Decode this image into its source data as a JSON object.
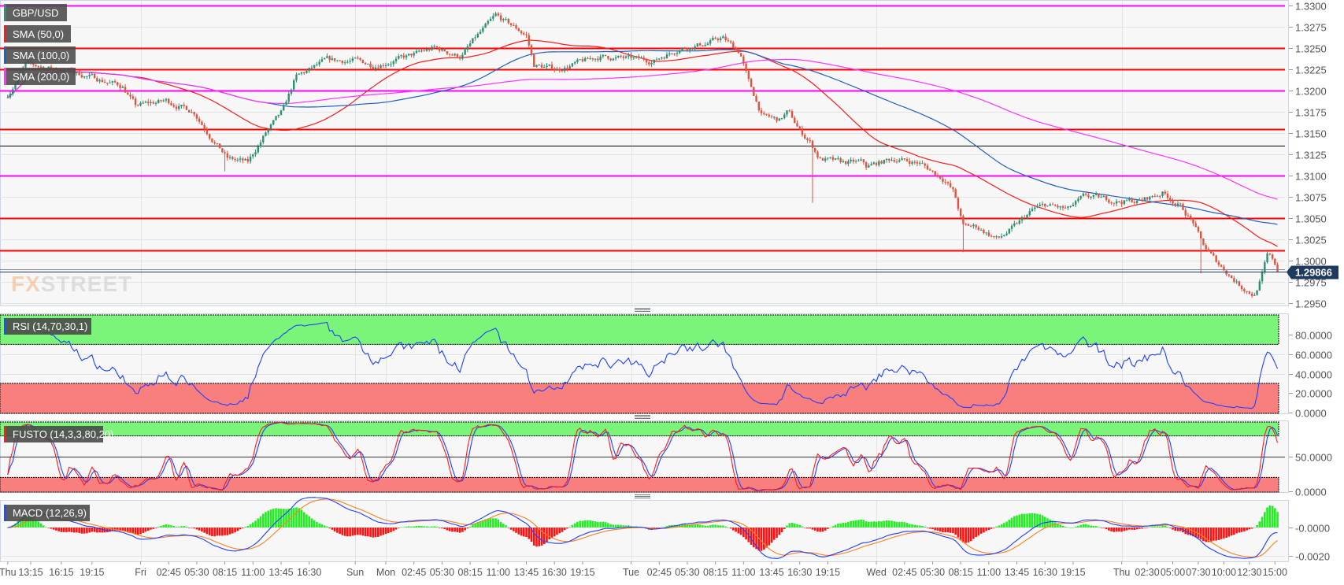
{
  "symbol_label": "GBP/USD",
  "overlays": [
    {
      "label": "SMA (50,0)",
      "color": "#ff1a1a",
      "period": 50
    },
    {
      "label": "SMA (100,0)",
      "color": "#1f5fbf",
      "period": 100
    },
    {
      "label": "SMA (200,0)",
      "color": "#ff33ff",
      "period": 200
    }
  ],
  "watermark": "FXSTREET",
  "current_price": "1.29866",
  "colors": {
    "bull": "#2f8f73",
    "bear": "#e0533f",
    "symbol_marker": "#2f8f73",
    "price_tag": "#1e3a5f"
  },
  "price_axis": {
    "ticks": [
      "1.3300",
      "1.3275",
      "1.3250",
      "1.3225",
      "1.3200",
      "1.3175",
      "1.3150",
      "1.3125",
      "1.3100",
      "1.3075",
      "1.3050",
      "1.3025",
      "1.3000",
      "1.2975",
      "1.2950"
    ]
  },
  "levels": [
    {
      "price": 1.33,
      "color": "#ff00ff"
    },
    {
      "price": 1.325,
      "color": "#ff0000"
    },
    {
      "price": 1.3225,
      "color": "#ff0000"
    },
    {
      "price": 1.32,
      "color": "#ff00ff"
    },
    {
      "price": 1.3155,
      "color": "#ff0000"
    },
    {
      "price": 1.3135,
      "color": "#000000"
    },
    {
      "price": 1.31,
      "color": "#ff00ff"
    },
    {
      "price": 1.305,
      "color": "#ff0000"
    },
    {
      "price": 1.3012,
      "color": "#ff0000"
    },
    {
      "price": 1.299,
      "color": "#888888"
    }
  ],
  "indicators": {
    "rsi": {
      "label": "RSI (14,70,30,1)",
      "ticks": [
        "80.0000",
        "60.0000",
        "40.0000",
        "20.0000",
        "0.0000"
      ],
      "overbought": 70,
      "oversold": 30
    },
    "fusto": {
      "label": "FUSTO (14,3,3,80,20)",
      "ticks": [
        "50.0000",
        "0.0000"
      ],
      "overbought": 80,
      "oversold": 20
    },
    "macd": {
      "label": "MACD (12,26,9)",
      "ticks": [
        "-0.0000",
        "-0.0020"
      ]
    }
  },
  "time_axis": [
    {
      "text": "Thu",
      "t": "Thu 11:00"
    },
    {
      "text": "13:15",
      "t": "Thu 13:15"
    },
    {
      "text": "16:15",
      "t": "Thu 16:15"
    },
    {
      "text": "19:15",
      "t": "Thu 19:15"
    },
    {
      "text": "Fri",
      "t": "Fri 00:00"
    },
    {
      "text": "02:45",
      "t": "Fri 02:45"
    },
    {
      "text": "05:30",
      "t": "Fri 05:30"
    },
    {
      "text": "08:15",
      "t": "Fri 08:15"
    },
    {
      "text": "11:00",
      "t": "Fri 11:00"
    },
    {
      "text": "13:45",
      "t": "Fri 13:45"
    },
    {
      "text": "16:30",
      "t": "Fri 16:30"
    },
    {
      "text": "Sun",
      "t": "Sun 21:00"
    },
    {
      "text": "Mon",
      "t": "Mon 00:00"
    },
    {
      "text": "02:45",
      "t": "Mon 02:45"
    },
    {
      "text": "05:30",
      "t": "Mon 05:30"
    },
    {
      "text": "08:15",
      "t": "Mon 08:15"
    },
    {
      "text": "11:00",
      "t": "Mon 11:00"
    },
    {
      "text": "13:45",
      "t": "Mon 13:45"
    },
    {
      "text": "16:30",
      "t": "Mon 16:30"
    },
    {
      "text": "19:15",
      "t": "Mon 19:15"
    },
    {
      "text": "Tue",
      "t": "Tue 00:00"
    },
    {
      "text": "02:45",
      "t": "Tue 02:45"
    },
    {
      "text": "05:30",
      "t": "Tue 05:30"
    },
    {
      "text": "08:15",
      "t": "Tue 08:15"
    },
    {
      "text": "11:00",
      "t": "Tue 11:00"
    },
    {
      "text": "13:45",
      "t": "Tue 13:45"
    },
    {
      "text": "16:30",
      "t": "Tue 16:30"
    },
    {
      "text": "19:15",
      "t": "Tue 19:15"
    },
    {
      "text": "Wed",
      "t": "Wed 00:00"
    },
    {
      "text": "02:45",
      "t": "Wed 02:45"
    },
    {
      "text": "05:30",
      "t": "Wed 05:30"
    },
    {
      "text": "08:15",
      "t": "Wed 08:15"
    },
    {
      "text": "11:00",
      "t": "Wed 11:00"
    },
    {
      "text": "13:45",
      "t": "Wed 13:45"
    },
    {
      "text": "16:30",
      "t": "Wed 16:30"
    },
    {
      "text": "19:15",
      "t": "Wed 19:15"
    },
    {
      "text": "Thu",
      "t": "Thu 00:00"
    },
    {
      "text": "02:30",
      "t": "Thu 02:30"
    },
    {
      "text": "05:00",
      "t": "Thu 05:00"
    },
    {
      "text": "07:30",
      "t": "Thu 07:30"
    },
    {
      "text": "10:00",
      "t": "Thu 10:00"
    },
    {
      "text": "12:30",
      "t": "Thu 12:30"
    },
    {
      "text": "15:00",
      "t": "Thu 15:00"
    }
  ],
  "chart_data": {
    "type": "candlestick",
    "interval": "15m",
    "ylim": [
      1.295,
      1.33
    ],
    "grid": true,
    "series": [
      {
        "name": "GBP/USD",
        "path": [
          [
            "Thu 11:00",
            1.3195
          ],
          [
            "Thu 12:45",
            1.323
          ],
          [
            "Thu 16:15",
            1.3225
          ],
          [
            "Thu 19:30",
            1.3215
          ],
          [
            "Thu 22:15",
            1.3205
          ],
          [
            "Thu 23:30",
            1.3182
          ],
          [
            "Fri 02:30",
            1.3188
          ],
          [
            "Fri 05:15",
            1.3175
          ],
          [
            "Fri 06:40",
            1.315
          ],
          [
            "Fri 08:30",
            1.312
          ],
          [
            "Fri 10:30",
            1.3115
          ],
          [
            "Fri 12:15",
            1.315
          ],
          [
            "Fri 13:55",
            1.3175
          ],
          [
            "Fri 15:10",
            1.3215
          ],
          [
            "Fri 18:10",
            1.3235
          ],
          [
            "Sun 21:00",
            1.3235
          ],
          [
            "Sun 22:45",
            1.323
          ],
          [
            "Mon 02:15",
            1.324
          ],
          [
            "Mon 04:45",
            1.325
          ],
          [
            "Mon 07:20",
            1.324
          ],
          [
            "Mon 08:40",
            1.326
          ],
          [
            "Mon 10:45",
            1.3287
          ],
          [
            "Mon 12:30",
            1.3275
          ],
          [
            "Mon 13:45",
            1.3265
          ],
          [
            "Mon 14:30",
            1.323
          ],
          [
            "Mon 16:45",
            1.3225
          ],
          [
            "Mon 21:00",
            1.324
          ],
          [
            "Tue 02:10",
            1.3235
          ],
          [
            "Tue 04:40",
            1.325
          ],
          [
            "Tue 07:15",
            1.3255
          ],
          [
            "Tue 08:55",
            1.3262
          ],
          [
            "Tue 10:40",
            1.3245
          ],
          [
            "Tue 11:30",
            1.321
          ],
          [
            "Tue 12:50",
            1.317
          ],
          [
            "Tue 14:30",
            1.3165
          ],
          [
            "Tue 15:20",
            1.3175
          ],
          [
            "Tue 16:40",
            1.315
          ],
          [
            "Tue 17:30",
            1.314
          ],
          [
            "Tue 18:25",
            1.312
          ],
          [
            "Tue 20:30",
            1.3115
          ],
          [
            "Tue 22:40",
            1.3115
          ],
          [
            "Tue 23:00",
            1.311
          ],
          [
            "Wed 01:40",
            1.312
          ],
          [
            "Wed 04:10",
            1.3115
          ],
          [
            "Wed 06:45",
            1.3095
          ],
          [
            "Wed 07:35",
            1.308
          ],
          [
            "Wed 08:30",
            1.304
          ],
          [
            "Wed 09:45",
            1.304
          ],
          [
            "Wed 11:55",
            1.3025
          ],
          [
            "Wed 13:35",
            1.304
          ],
          [
            "Wed 15:20",
            1.306
          ],
          [
            "Wed 16:35",
            1.3065
          ],
          [
            "Wed 18:45",
            1.306
          ],
          [
            "Wed 20:25",
            1.3075
          ],
          [
            "Wed 23:50",
            1.307
          ],
          [
            "Thu 01:50",
            1.307
          ],
          [
            "Thu 04:00",
            1.308
          ],
          [
            "Thu 05:40",
            1.3065
          ],
          [
            "Thu 07:00",
            1.3045
          ],
          [
            "Thu 07:50",
            1.302
          ],
          [
            "Thu 09:10",
            1.3
          ],
          [
            "Thu 10:25",
            1.2985
          ],
          [
            "Thu 11:40",
            1.297
          ],
          [
            "Thu 13:00",
            1.296
          ],
          [
            "Thu 13:40",
            1.298
          ],
          [
            "Thu 14:15",
            1.3005
          ],
          [
            "Thu 14:50",
            1.3
          ],
          [
            "Thu 15:20",
            1.29866
          ]
        ],
        "wicks": [
          [
            "Fri 08:15",
            1.3105
          ],
          [
            "Tue 17:45",
            1.3068
          ],
          [
            "Wed 08:30",
            1.301
          ],
          [
            "Thu 07:45",
            1.2985
          ]
        ]
      }
    ]
  }
}
